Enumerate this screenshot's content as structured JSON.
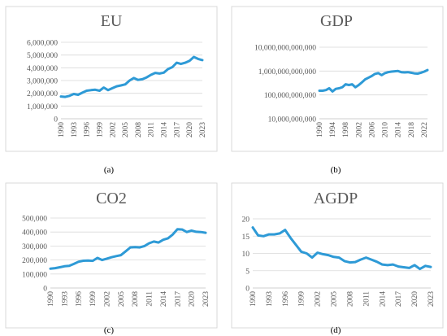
{
  "chart_data": [
    {
      "type": "line",
      "title": "EU",
      "caption": "(a)",
      "x_ticks": [
        "1990",
        "1993",
        "1996",
        "1999",
        "2002",
        "2005",
        "2008",
        "2011",
        "2014",
        "2017",
        "2020",
        "2023"
      ],
      "y_ticks": [
        "0",
        "1,000,000",
        "2,000,000",
        "3,000,000",
        "4,000,000",
        "5,000,000",
        "6,000,000"
      ],
      "ylim": [
        0,
        6000000
      ],
      "y_scale": "linear",
      "grid": "horizontal",
      "color": "#2e9ad6",
      "x": [
        1990,
        1991,
        1992,
        1993,
        1994,
        1995,
        1996,
        1997,
        1998,
        1999,
        2000,
        2001,
        2002,
        2003,
        2004,
        2005,
        2006,
        2007,
        2008,
        2009,
        2010,
        2011,
        2012,
        2013,
        2014,
        2015,
        2016,
        2017,
        2018,
        2019,
        2020,
        2021,
        2022,
        2023
      ],
      "values": [
        1750000,
        1720000,
        1800000,
        1950000,
        1880000,
        2050000,
        2200000,
        2250000,
        2280000,
        2200000,
        2450000,
        2250000,
        2400000,
        2550000,
        2620000,
        2700000,
        3000000,
        3200000,
        3050000,
        3100000,
        3250000,
        3450000,
        3600000,
        3550000,
        3620000,
        3900000,
        4050000,
        4400000,
        4300000,
        4400000,
        4550000,
        4850000,
        4700000,
        4600000
      ]
    },
    {
      "type": "line",
      "title": "GDP",
      "caption": "(b)",
      "x_ticks": [
        "1990",
        "1994",
        "1998",
        "2002",
        "2006",
        "2010",
        "2014",
        "2018",
        "2022"
      ],
      "y_ticks": [
        "10,000,000,000",
        "100,000,000,000",
        "1,000,000,000,000",
        "10,000,000,000,000"
      ],
      "ylim": [
        10000000000,
        10000000000000
      ],
      "y_scale": "log",
      "grid": "horizontal",
      "color": "#2e9ad6",
      "x": [
        1990,
        1991,
        1992,
        1993,
        1994,
        1995,
        1996,
        1997,
        1998,
        1999,
        2000,
        2001,
        2002,
        2003,
        2004,
        2005,
        2006,
        2007,
        2008,
        2009,
        2010,
        2011,
        2012,
        2013,
        2014,
        2015,
        2016,
        2017,
        2018,
        2019,
        2020,
        2021,
        2022,
        2023
      ],
      "values": [
        150000000000,
        150000000000,
        160000000000,
        190000000000,
        140000000000,
        180000000000,
        190000000000,
        210000000000,
        280000000000,
        260000000000,
        280000000000,
        210000000000,
        260000000000,
        340000000000,
        450000000000,
        530000000000,
        620000000000,
        760000000000,
        820000000000,
        670000000000,
        820000000000,
        900000000000,
        950000000000,
        980000000000,
        1000000000000,
        900000000000,
        880000000000,
        900000000000,
        850000000000,
        800000000000,
        780000000000,
        850000000000,
        950000000000,
        1100000000000
      ]
    },
    {
      "type": "line",
      "title": "CO2",
      "caption": "(c)",
      "x_ticks": [
        "1990",
        "1993",
        "1996",
        "1999",
        "2002",
        "2005",
        "2008",
        "2011",
        "2014",
        "2017",
        "2020",
        "2023"
      ],
      "y_ticks": [
        "0",
        "100,000",
        "200,000",
        "300,000",
        "400,000",
        "500,000"
      ],
      "ylim": [
        0,
        500000
      ],
      "y_scale": "linear",
      "grid": "horizontal",
      "color": "#2e9ad6",
      "x": [
        1990,
        1991,
        1992,
        1993,
        1994,
        1995,
        1996,
        1997,
        1998,
        1999,
        2000,
        2001,
        2002,
        2003,
        2004,
        2005,
        2006,
        2007,
        2008,
        2009,
        2010,
        2011,
        2012,
        2013,
        2014,
        2015,
        2016,
        2017,
        2018,
        2019,
        2020,
        2021,
        2022,
        2023
      ],
      "values": [
        138000,
        142000,
        148000,
        155000,
        158000,
        172000,
        188000,
        195000,
        196000,
        194000,
        215000,
        200000,
        210000,
        220000,
        228000,
        235000,
        262000,
        290000,
        292000,
        290000,
        300000,
        320000,
        332000,
        325000,
        345000,
        355000,
        382000,
        420000,
        418000,
        400000,
        410000,
        402000,
        400000,
        395000
      ]
    },
    {
      "type": "line",
      "title": "AGDP",
      "caption": "(d)",
      "x_ticks": [
        "1990",
        "1993",
        "1996",
        "1999",
        "2002",
        "2005",
        "2008",
        "2011",
        "2014",
        "2017",
        "2020",
        "2023"
      ],
      "y_ticks": [
        "0",
        "5",
        "10",
        "15",
        "20"
      ],
      "ylim": [
        0,
        20
      ],
      "y_scale": "linear",
      "grid": "horizontal",
      "color": "#2e9ad6",
      "x": [
        1990,
        1991,
        1992,
        1993,
        1994,
        1995,
        1996,
        1997,
        1998,
        1999,
        2000,
        2001,
        2002,
        2003,
        2004,
        2005,
        2006,
        2007,
        2008,
        2009,
        2010,
        2011,
        2012,
        2013,
        2014,
        2015,
        2016,
        2017,
        2018,
        2019,
        2020,
        2021,
        2022,
        2023
      ],
      "values": [
        17.5,
        15.2,
        15.0,
        15.5,
        15.5,
        15.8,
        16.8,
        14.5,
        12.5,
        10.5,
        10.0,
        8.8,
        10.2,
        9.8,
        9.5,
        9.0,
        8.8,
        7.8,
        7.4,
        7.5,
        8.2,
        8.8,
        8.2,
        7.6,
        6.8,
        6.6,
        6.8,
        6.2,
        6.0,
        5.8,
        6.6,
        5.5,
        6.4,
        6.1
      ]
    }
  ]
}
